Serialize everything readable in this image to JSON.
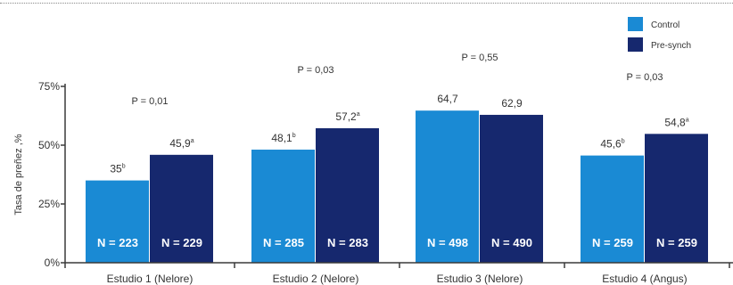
{
  "chart_data": {
    "type": "bar",
    "ylabel": "Tasa de preñez ,%",
    "ylim": [
      0,
      75
    ],
    "yticks": [
      "0%",
      "25%",
      "50%",
      "75%"
    ],
    "grid": false,
    "legend_position": "top-right",
    "categories": [
      "Estudio 1 (Nelore)",
      "Estudio 2 (Nelore)",
      "Estudio 3 (Nelore)",
      "Estudio 4 (Angus)"
    ],
    "series": [
      {
        "name": "Control",
        "color": "#1a8ad4",
        "values": [
          35,
          48.1,
          64.7,
          45.6
        ],
        "value_labels": [
          "35",
          "48,1",
          "64,7",
          "45,6"
        ],
        "superscripts": [
          "b",
          "b",
          "",
          "b"
        ],
        "n_labels": [
          "N = 223",
          "N = 285",
          "N = 498",
          "N = 259"
        ]
      },
      {
        "name": "Pre-synch",
        "color": "#16286e",
        "values": [
          45.9,
          57.2,
          62.9,
          54.8
        ],
        "value_labels": [
          "45,9",
          "57,2",
          "62,9",
          "54,8"
        ],
        "superscripts": [
          "a",
          "a",
          "",
          "a"
        ],
        "n_labels": [
          "N = 229",
          "N = 283",
          "N = 490",
          "N = 259"
        ]
      }
    ],
    "p_values": [
      "P = 0,01",
      "P = 0,03",
      "P = 0,55",
      "P = 0,03"
    ]
  }
}
